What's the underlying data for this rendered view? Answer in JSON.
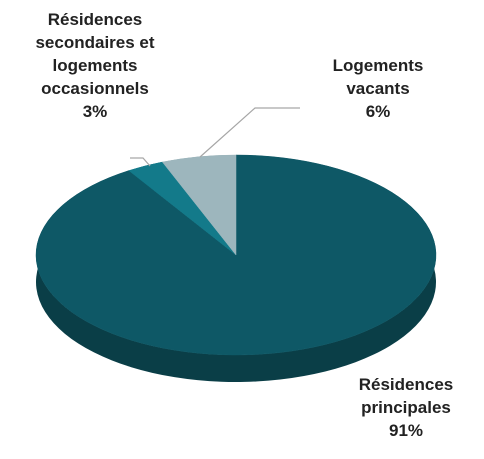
{
  "chart_data": {
    "type": "pie",
    "categories": [
      "Résidences principales",
      "Résidences secondaires et logements occasionnels",
      "Logements vacants"
    ],
    "values": [
      91,
      3,
      6
    ],
    "value_labels": [
      "91%",
      "3%",
      "6%"
    ],
    "colors": [
      "#0e5866",
      "#137a8a",
      "#9db6bd"
    ]
  }
}
